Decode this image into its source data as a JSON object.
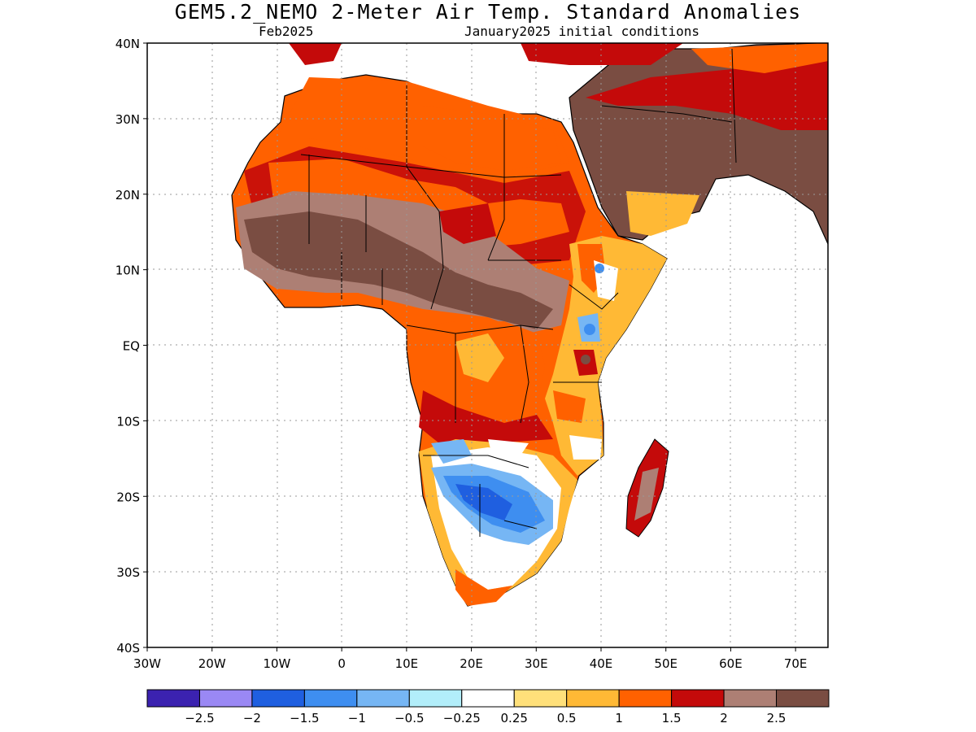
{
  "title": "GEM5.2_NEMO 2-Meter Air Temp. Standard Anomalies",
  "subtitle_left": "Feb2025",
  "subtitle_right": "January2025 initial conditions",
  "axes": {
    "lat_labels": [
      "40N",
      "30N",
      "20N",
      "10N",
      "EQ",
      "10S",
      "20S",
      "30S",
      "40S"
    ],
    "lon_labels": [
      "30W",
      "20W",
      "10W",
      "0",
      "10E",
      "20E",
      "30E",
      "40E",
      "50E",
      "60E",
      "70E"
    ],
    "lat_range": [
      -40,
      40
    ],
    "lon_range": [
      -30,
      75
    ],
    "grid": true
  },
  "colors": {
    "lt_-2.5": "#3b22b0",
    "-2.5_-2": "#9a88f4",
    "-2_-1.5": "#1f5fe0",
    "-1.5_-1": "#3e8ef0",
    "-1_-0.5": "#76b6f4",
    "-0.5_-0.25": "#b2eefa",
    "-0.25_0.25": "#ffffff",
    "0.25_0.5": "#ffe07a",
    "0.5_1": "#ffb935",
    "1_1.5": "#ff6100",
    "1.5_2": "#c40a0a",
    "2_2.5": "#ad7f74",
    "gt_2.5": "#7a4d42"
  },
  "colorbar": {
    "labels": [
      "-2.5",
      "-2",
      "-1.5",
      "-1",
      "-0.5",
      "-0.25",
      "0.25",
      "0.5",
      "1",
      "1.5",
      "2",
      "2.5"
    ]
  },
  "regions": {
    "north_africa": "1_1.5",
    "sahel": "2_2.5",
    "arabia": "gt_2.5",
    "southern_africa": "-1.5_-1",
    "south_africa_coast": "0.5_1",
    "east_africa": "0.5_1",
    "madagascar": "1.5_2"
  }
}
